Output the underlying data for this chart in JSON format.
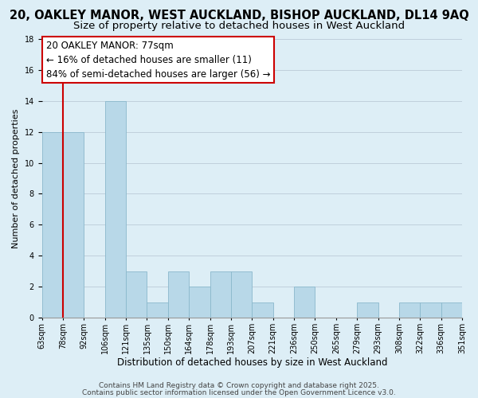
{
  "title": "20, OAKLEY MANOR, WEST AUCKLAND, BISHOP AUCKLAND, DL14 9AQ",
  "subtitle": "Size of property relative to detached houses in West Auckland",
  "xlabel": "Distribution of detached houses by size in West Auckland",
  "ylabel": "Number of detached properties",
  "bar_values": [
    12,
    12,
    0,
    14,
    3,
    1,
    3,
    2,
    3,
    3,
    1,
    0,
    2,
    0,
    0,
    1,
    0,
    1,
    1,
    1
  ],
  "categories": [
    "63sqm",
    "78sqm",
    "92sqm",
    "106sqm",
    "121sqm",
    "135sqm",
    "150sqm",
    "164sqm",
    "178sqm",
    "193sqm",
    "207sqm",
    "221sqm",
    "236sqm",
    "250sqm",
    "265sqm",
    "279sqm",
    "293sqm",
    "308sqm",
    "322sqm",
    "336sqm",
    "351sqm"
  ],
  "bar_color": "#b8d8e8",
  "bar_edge_color": "#8ab8cc",
  "grid_color": "#c0d0dc",
  "background_color": "#ddeef6",
  "vline_color": "#cc0000",
  "annotation_text": "20 OAKLEY MANOR: 77sqm\n← 16% of detached houses are smaller (11)\n84% of semi-detached houses are larger (56) →",
  "annotation_box_color": "#ffffff",
  "annotation_box_edge": "#cc0000",
  "ylim": [
    0,
    18
  ],
  "yticks": [
    0,
    2,
    4,
    6,
    8,
    10,
    12,
    14,
    16,
    18
  ],
  "footer_line1": "Contains HM Land Registry data © Crown copyright and database right 2025.",
  "footer_line2": "Contains public sector information licensed under the Open Government Licence v3.0.",
  "title_fontsize": 10.5,
  "subtitle_fontsize": 9.5,
  "xlabel_fontsize": 8.5,
  "ylabel_fontsize": 8,
  "tick_fontsize": 7,
  "annotation_fontsize": 8.5,
  "footer_fontsize": 6.5
}
